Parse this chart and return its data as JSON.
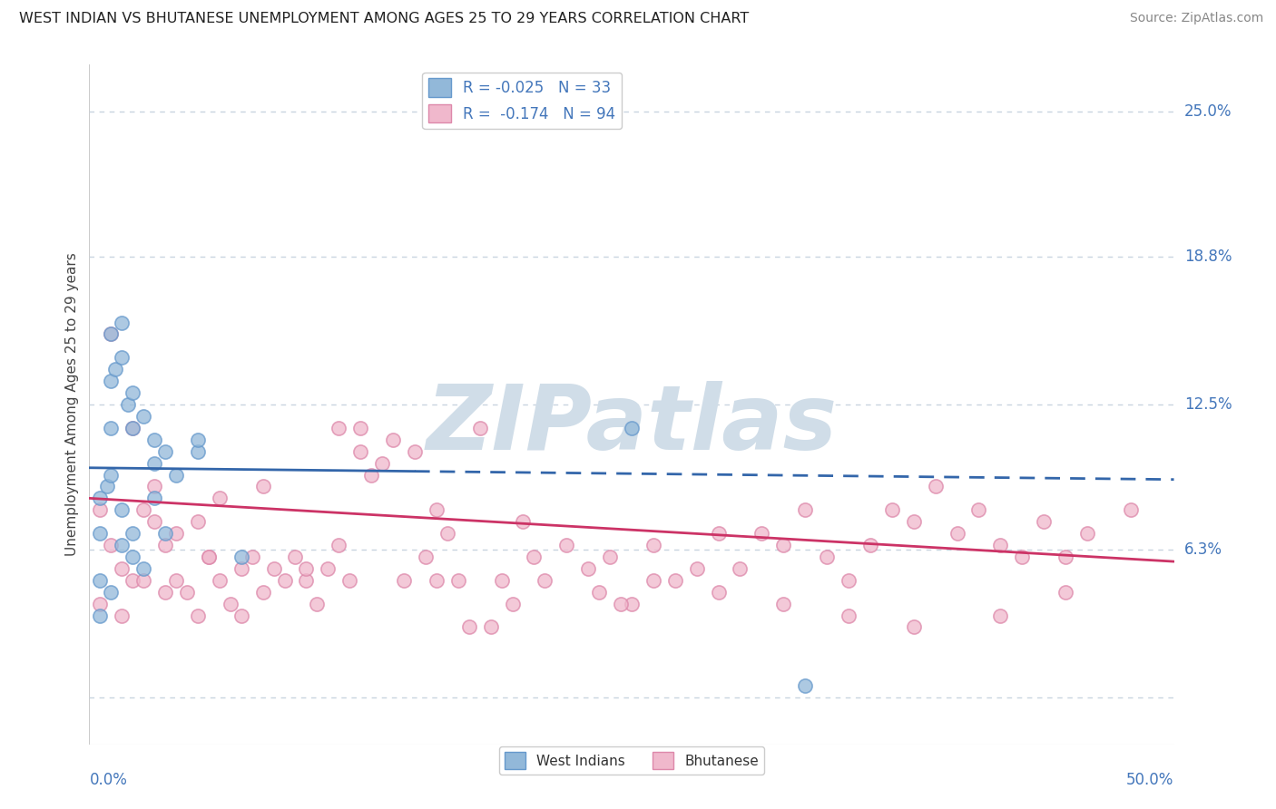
{
  "title": "WEST INDIAN VS BHUTANESE UNEMPLOYMENT AMONG AGES 25 TO 29 YEARS CORRELATION CHART",
  "source": "Source: ZipAtlas.com",
  "ylabel": "Unemployment Among Ages 25 to 29 years",
  "ytick_values": [
    0.0,
    6.3,
    12.5,
    18.8,
    25.0
  ],
  "ytick_labels": [
    "",
    "6.3%",
    "12.5%",
    "18.8%",
    "25.0%"
  ],
  "xlim": [
    0,
    50
  ],
  "ylim": [
    -2,
    27
  ],
  "west_indians_color": "#92b8d9",
  "west_indians_edge": "#6699cc",
  "bhutanese_color": "#f0b8cc",
  "bhutanese_edge": "#dd88aa",
  "west_indians_line_color": "#3366aa",
  "bhutanese_line_color": "#cc3366",
  "watermark": "ZIPatlas",
  "watermark_color": "#d0dde8",
  "legend_r1": "R = -0.025   N = 33",
  "legend_r2": "R =  -0.174   N = 94",
  "legend_color": "#4477bb",
  "wi_x": [
    0.5,
    0.8,
    1.0,
    1.0,
    1.2,
    1.5,
    1.5,
    1.8,
    2.0,
    2.0,
    2.5,
    2.5,
    3.0,
    3.5,
    4.0,
    5.0,
    0.5,
    0.5,
    0.5,
    1.0,
    1.0,
    1.5,
    2.0,
    2.0,
    3.0,
    3.5,
    5.0,
    7.0,
    1.0,
    1.5,
    3.0,
    25.0,
    33.0
  ],
  "wi_y": [
    8.5,
    9.0,
    13.5,
    9.5,
    14.0,
    14.5,
    6.5,
    12.5,
    13.0,
    7.0,
    12.0,
    5.5,
    11.0,
    10.5,
    9.5,
    10.5,
    5.0,
    3.5,
    7.0,
    4.5,
    11.5,
    8.0,
    6.0,
    11.5,
    10.0,
    7.0,
    11.0,
    6.0,
    15.5,
    16.0,
    8.5,
    11.5,
    0.5
  ],
  "bh_x": [
    0.5,
    0.5,
    1.0,
    1.0,
    1.5,
    1.5,
    2.0,
    2.0,
    2.5,
    3.0,
    3.0,
    3.5,
    4.0,
    4.5,
    5.0,
    5.0,
    5.5,
    6.0,
    6.5,
    7.0,
    7.5,
    8.0,
    8.5,
    9.0,
    10.0,
    10.0,
    11.0,
    11.5,
    12.0,
    12.5,
    13.0,
    14.0,
    14.5,
    15.0,
    16.0,
    16.5,
    17.0,
    18.0,
    19.0,
    20.0,
    21.0,
    22.0,
    23.0,
    24.0,
    25.0,
    26.0,
    27.0,
    28.0,
    29.0,
    30.0,
    31.0,
    32.0,
    33.0,
    34.0,
    35.0,
    36.0,
    37.0,
    38.0,
    39.0,
    40.0,
    41.0,
    42.0,
    43.0,
    44.0,
    45.0,
    46.0,
    48.0,
    2.5,
    3.5,
    4.0,
    5.5,
    6.0,
    7.0,
    8.0,
    9.5,
    10.5,
    11.5,
    12.5,
    13.5,
    15.5,
    16.0,
    17.5,
    18.5,
    19.5,
    20.5,
    23.5,
    24.5,
    26.0,
    29.0,
    32.0,
    35.0,
    38.0,
    42.0,
    45.0
  ],
  "bh_y": [
    8.0,
    4.0,
    6.5,
    15.5,
    5.5,
    3.5,
    5.0,
    11.5,
    8.0,
    7.5,
    9.0,
    6.5,
    5.0,
    4.5,
    7.5,
    3.5,
    6.0,
    5.0,
    4.0,
    5.5,
    6.0,
    4.5,
    5.5,
    5.0,
    5.0,
    5.5,
    5.5,
    6.5,
    5.0,
    10.5,
    9.5,
    11.0,
    5.0,
    10.5,
    8.0,
    7.0,
    5.0,
    11.5,
    5.0,
    7.5,
    5.0,
    6.5,
    5.5,
    6.0,
    4.0,
    6.5,
    5.0,
    5.5,
    7.0,
    5.5,
    7.0,
    6.5,
    8.0,
    6.0,
    5.0,
    6.5,
    8.0,
    7.5,
    9.0,
    7.0,
    8.0,
    6.5,
    6.0,
    7.5,
    6.0,
    7.0,
    8.0,
    5.0,
    4.5,
    7.0,
    6.0,
    8.5,
    3.5,
    9.0,
    6.0,
    4.0,
    11.5,
    11.5,
    10.0,
    6.0,
    5.0,
    3.0,
    3.0,
    4.0,
    6.0,
    4.5,
    4.0,
    5.0,
    4.5,
    4.0,
    3.5,
    3.0,
    3.5,
    4.5
  ],
  "wi_trend_x0": 0,
  "wi_trend_x1": 50,
  "wi_trend_y0": 9.8,
  "wi_trend_y1": 9.3,
  "wi_trend_dash_x": 15,
  "bh_trend_x0": 0,
  "bh_trend_x1": 50,
  "bh_trend_y0": 8.5,
  "bh_trend_y1": 5.8
}
